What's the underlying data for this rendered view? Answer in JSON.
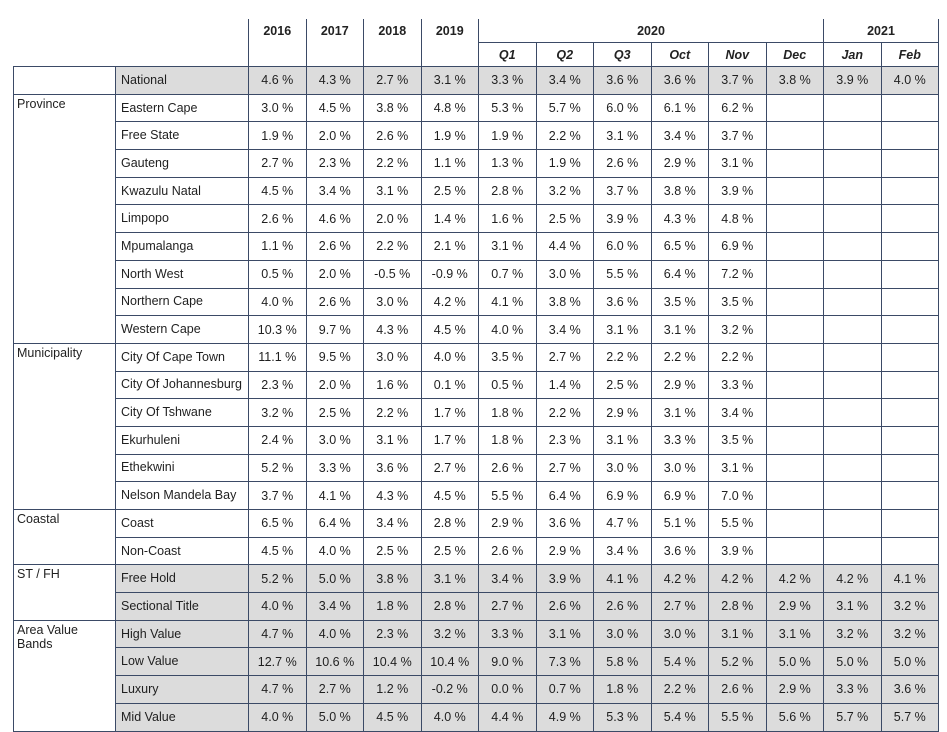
{
  "columns": {
    "years": [
      "2016",
      "2017",
      "2018",
      "2019"
    ],
    "group_2020": "2020",
    "group_2021": "2021",
    "sub_2020": [
      "Q1",
      "Q2",
      "Q3",
      "Oct",
      "Nov",
      "Dec"
    ],
    "sub_2021": [
      "Jan",
      "Feb"
    ]
  },
  "groups": [
    {
      "name": "",
      "rows": [
        {
          "label": "National",
          "values": [
            "4.6 %",
            "4.3 %",
            "2.7 %",
            "3.1 %",
            "3.3 %",
            "3.4 %",
            "3.6 %",
            "3.6 %",
            "3.7 %",
            "3.8 %",
            "3.9 %",
            "4.0 %"
          ]
        }
      ]
    },
    {
      "name": "Province",
      "rows": [
        {
          "label": "Eastern Cape",
          "values": [
            "3.0 %",
            "4.5 %",
            "3.8 %",
            "4.8 %",
            "5.3 %",
            "5.7 %",
            "6.0 %",
            "6.1 %",
            "6.2 %",
            "",
            "",
            ""
          ]
        },
        {
          "label": "Free State",
          "values": [
            "1.9 %",
            "2.0 %",
            "2.6 %",
            "1.9 %",
            "1.9 %",
            "2.2 %",
            "3.1 %",
            "3.4 %",
            "3.7 %",
            "",
            "",
            ""
          ]
        },
        {
          "label": "Gauteng",
          "values": [
            "2.7 %",
            "2.3 %",
            "2.2 %",
            "1.1 %",
            "1.3 %",
            "1.9 %",
            "2.6 %",
            "2.9 %",
            "3.1 %",
            "",
            "",
            ""
          ]
        },
        {
          "label": "Kwazulu Natal",
          "values": [
            "4.5 %",
            "3.4 %",
            "3.1 %",
            "2.5 %",
            "2.8 %",
            "3.2 %",
            "3.7 %",
            "3.8 %",
            "3.9 %",
            "",
            "",
            ""
          ]
        },
        {
          "label": "Limpopo",
          "values": [
            "2.6 %",
            "4.6 %",
            "2.0 %",
            "1.4 %",
            "1.6 %",
            "2.5 %",
            "3.9 %",
            "4.3 %",
            "4.8 %",
            "",
            "",
            ""
          ]
        },
        {
          "label": "Mpumalanga",
          "values": [
            "1.1 %",
            "2.6 %",
            "2.2 %",
            "2.1 %",
            "3.1 %",
            "4.4 %",
            "6.0 %",
            "6.5 %",
            "6.9 %",
            "",
            "",
            ""
          ]
        },
        {
          "label": "North West",
          "values": [
            "0.5 %",
            "2.0 %",
            "-0.5 %",
            "-0.9 %",
            "0.7 %",
            "3.0 %",
            "5.5 %",
            "6.4 %",
            "7.2 %",
            "",
            "",
            ""
          ]
        },
        {
          "label": "Northern Cape",
          "values": [
            "4.0 %",
            "2.6 %",
            "3.0 %",
            "4.2 %",
            "4.1 %",
            "3.8 %",
            "3.6 %",
            "3.5 %",
            "3.5 %",
            "",
            "",
            ""
          ]
        },
        {
          "label": "Western Cape",
          "values": [
            "10.3 %",
            "9.7 %",
            "4.3 %",
            "4.5 %",
            "4.0 %",
            "3.4 %",
            "3.1 %",
            "3.1 %",
            "3.2 %",
            "",
            "",
            ""
          ]
        }
      ]
    },
    {
      "name": "Municipality",
      "rows": [
        {
          "label": "City Of Cape Town",
          "values": [
            "11.1 %",
            "9.5 %",
            "3.0 %",
            "4.0 %",
            "3.5 %",
            "2.7 %",
            "2.2 %",
            "2.2 %",
            "2.2 %",
            "",
            "",
            ""
          ]
        },
        {
          "label": "City Of Johannesburg",
          "values": [
            "2.3 %",
            "2.0 %",
            "1.6 %",
            "0.1 %",
            "0.5 %",
            "1.4 %",
            "2.5 %",
            "2.9 %",
            "3.3 %",
            "",
            "",
            ""
          ]
        },
        {
          "label": "City Of Tshwane",
          "values": [
            "3.2 %",
            "2.5 %",
            "2.2 %",
            "1.7 %",
            "1.8 %",
            "2.2 %",
            "2.9 %",
            "3.1 %",
            "3.4 %",
            "",
            "",
            ""
          ]
        },
        {
          "label": "Ekurhuleni",
          "values": [
            "2.4 %",
            "3.0 %",
            "3.1 %",
            "1.7 %",
            "1.8 %",
            "2.3 %",
            "3.1 %",
            "3.3 %",
            "3.5 %",
            "",
            "",
            ""
          ]
        },
        {
          "label": "Ethekwini",
          "values": [
            "5.2 %",
            "3.3 %",
            "3.6 %",
            "2.7 %",
            "2.6 %",
            "2.7 %",
            "3.0 %",
            "3.0 %",
            "3.1 %",
            "",
            "",
            ""
          ]
        },
        {
          "label": "Nelson Mandela Bay",
          "values": [
            "3.7 %",
            "4.1 %",
            "4.3 %",
            "4.5 %",
            "5.5 %",
            "6.4 %",
            "6.9 %",
            "6.9 %",
            "7.0 %",
            "",
            "",
            ""
          ]
        }
      ]
    },
    {
      "name": "Coastal",
      "rows": [
        {
          "label": "Coast",
          "values": [
            "6.5 %",
            "6.4 %",
            "3.4 %",
            "2.8 %",
            "2.9 %",
            "3.6 %",
            "4.7 %",
            "5.1 %",
            "5.5 %",
            "",
            "",
            ""
          ]
        },
        {
          "label": "Non-Coast",
          "values": [
            "4.5 %",
            "4.0 %",
            "2.5 %",
            "2.5 %",
            "2.6 %",
            "2.9 %",
            "3.4 %",
            "3.6 %",
            "3.9 %",
            "",
            "",
            ""
          ]
        }
      ]
    },
    {
      "name": "ST / FH",
      "rows": [
        {
          "label": "Free Hold",
          "values": [
            "5.2 %",
            "5.0 %",
            "3.8 %",
            "3.1 %",
            "3.4 %",
            "3.9 %",
            "4.1 %",
            "4.2 %",
            "4.2 %",
            "4.2 %",
            "4.2 %",
            "4.1 %"
          ]
        },
        {
          "label": "Sectional Title",
          "values": [
            "4.0 %",
            "3.4 %",
            "1.8 %",
            "2.8 %",
            "2.7 %",
            "2.6 %",
            "2.6 %",
            "2.7 %",
            "2.8 %",
            "2.9 %",
            "3.1 %",
            "3.2 %"
          ]
        }
      ]
    },
    {
      "name": "Area Value Bands",
      "rows": [
        {
          "label": "High Value",
          "values": [
            "4.7 %",
            "4.0 %",
            "2.3 %",
            "3.2 %",
            "3.3 %",
            "3.1 %",
            "3.0 %",
            "3.0 %",
            "3.1 %",
            "3.1 %",
            "3.2 %",
            "3.2 %"
          ]
        },
        {
          "label": "Low Value",
          "values": [
            "12.7 %",
            "10.6 %",
            "10.4 %",
            "10.4 %",
            "9.0 %",
            "7.3 %",
            "5.8 %",
            "5.4 %",
            "5.2 %",
            "5.0 %",
            "5.0 %",
            "5.0 %"
          ]
        },
        {
          "label": "Luxury",
          "values": [
            "4.7 %",
            "2.7 %",
            "1.2 %",
            "-0.2 %",
            "0.0 %",
            "0.7 %",
            "1.8 %",
            "2.2 %",
            "2.6 %",
            "2.9 %",
            "3.3 %",
            "3.6 %"
          ]
        },
        {
          "label": "Mid Value",
          "values": [
            "4.0 %",
            "5.0 %",
            "4.5 %",
            "4.0 %",
            "4.4 %",
            "4.9 %",
            "5.3 %",
            "5.4 %",
            "5.5 %",
            "5.6 %",
            "5.7 %",
            "5.7 %"
          ]
        }
      ]
    }
  ]
}
